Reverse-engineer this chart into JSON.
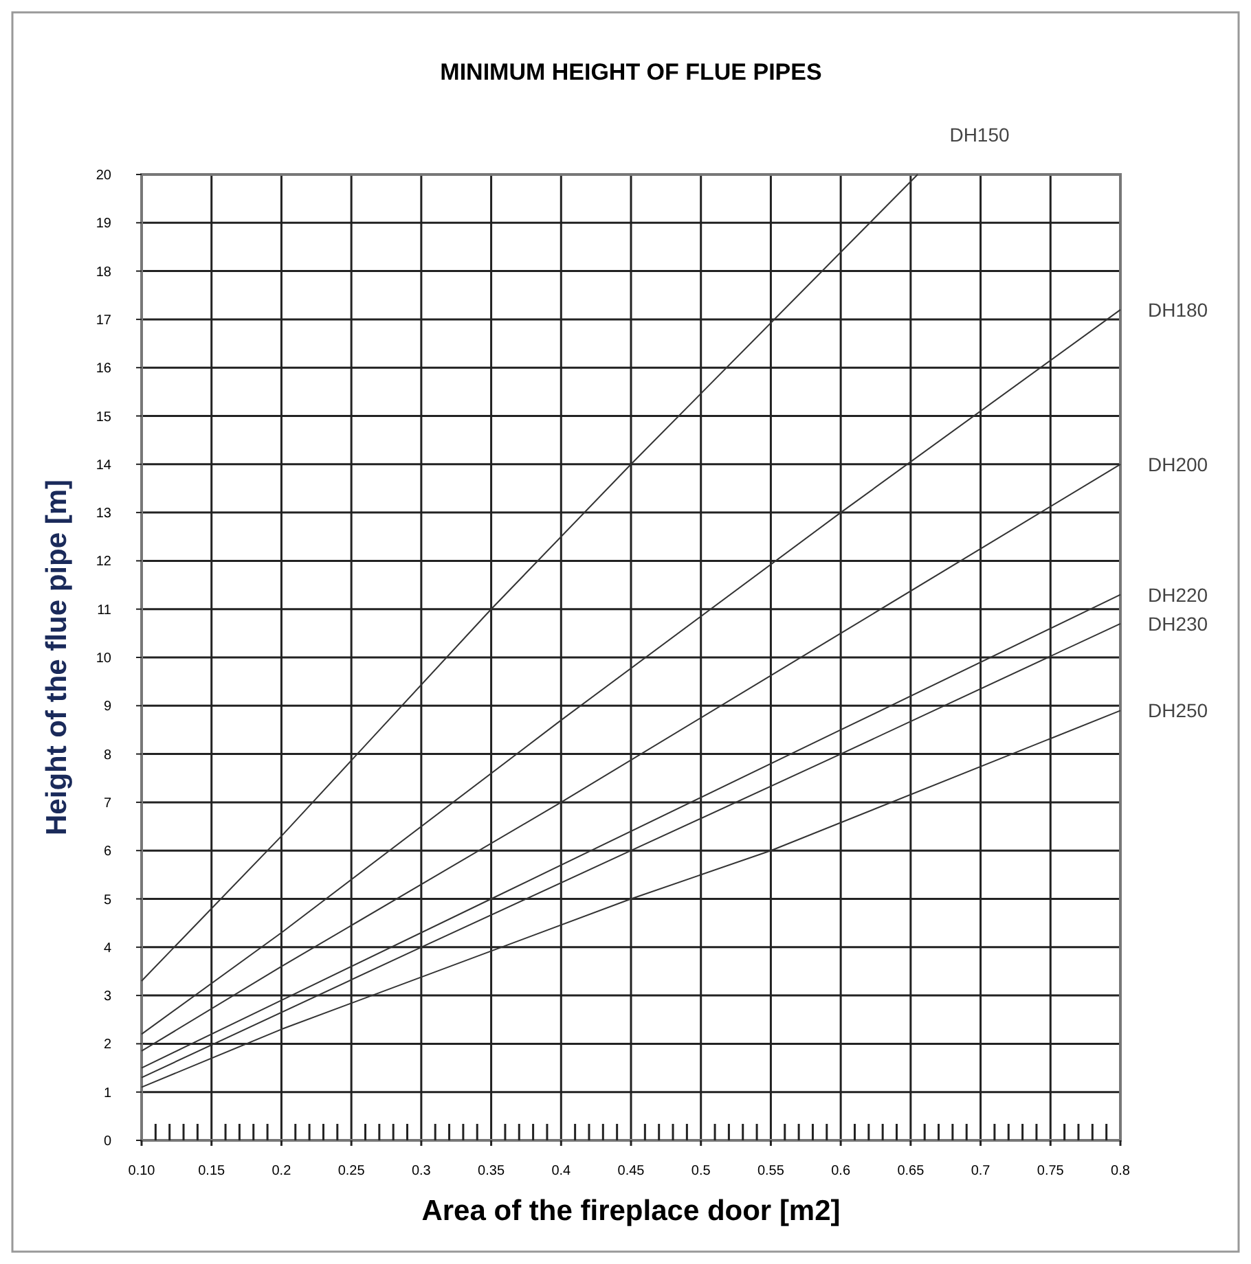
{
  "chart_data": {
    "type": "line",
    "title": "MINIMUM HEIGHT OF FLUE PIPES",
    "xlabel": "Area of the fireplace door [m2]",
    "ylabel": "Height of the flue pipe [m]",
    "xlim": [
      0.1,
      0.8
    ],
    "ylim": [
      0,
      20
    ],
    "xticks": [
      {
        "value": 0.1,
        "label": "0.10"
      },
      {
        "value": 0.11,
        "label": null
      },
      {
        "value": 0.12,
        "label": null
      },
      {
        "value": 0.13,
        "label": null
      },
      {
        "value": 0.14,
        "label": null
      },
      0.15,
      {
        "value": 0.16,
        "label": null
      },
      {
        "value": 0.17,
        "label": null
      },
      {
        "value": 0.18,
        "label": null
      },
      {
        "value": 0.19,
        "label": null
      },
      0.2,
      {
        "value": 0.21,
        "label": null
      },
      {
        "value": 0.22,
        "label": null
      },
      {
        "value": 0.23,
        "label": null
      },
      {
        "value": 0.24,
        "label": null
      },
      0.25,
      {
        "value": 0.26,
        "label": null
      },
      {
        "value": 0.27,
        "label": null
      },
      {
        "value": 0.28,
        "label": null
      },
      {
        "value": 0.29,
        "label": null
      },
      0.3,
      {
        "value": 0.31,
        "label": null
      },
      {
        "value": 0.32,
        "label": null
      },
      {
        "value": 0.33,
        "label": null
      },
      {
        "value": 0.34,
        "label": null
      },
      0.35,
      {
        "value": 0.36,
        "label": null
      },
      {
        "value": 0.37,
        "label": null
      },
      {
        "value": 0.38,
        "label": null
      },
      {
        "value": 0.39,
        "label": null
      },
      0.4,
      {
        "value": 0.41,
        "label": null
      },
      {
        "value": 0.42,
        "label": null
      },
      {
        "value": 0.43,
        "label": null
      },
      {
        "value": 0.44,
        "label": null
      },
      0.45,
      {
        "value": 0.46,
        "label": null
      },
      {
        "value": 0.47,
        "label": null
      },
      {
        "value": 0.48,
        "label": null
      },
      {
        "value": 0.49,
        "label": null
      },
      0.5,
      {
        "value": 0.51,
        "label": null
      },
      {
        "value": 0.52,
        "label": null
      },
      {
        "value": 0.53,
        "label": null
      },
      {
        "value": 0.54,
        "label": null
      },
      0.55,
      {
        "value": 0.56,
        "label": null
      },
      {
        "value": 0.57,
        "label": null
      },
      {
        "value": 0.58,
        "label": null
      },
      {
        "value": 0.59,
        "label": null
      },
      0.6,
      {
        "value": 0.61,
        "label": null
      },
      {
        "value": 0.62,
        "label": null
      },
      {
        "value": 0.63,
        "label": null
      },
      {
        "value": 0.64,
        "label": null
      },
      0.65,
      {
        "value": 0.66,
        "label": null
      },
      {
        "value": 0.67,
        "label": null
      },
      {
        "value": 0.68,
        "label": null
      },
      {
        "value": 0.69,
        "label": null
      },
      0.7,
      {
        "value": 0.71,
        "label": null
      },
      {
        "value": 0.72,
        "label": null
      },
      {
        "value": 0.73,
        "label": null
      },
      {
        "value": 0.74,
        "label": null
      },
      0.75,
      {
        "value": 0.76,
        "label": null
      },
      {
        "value": 0.77,
        "label": null
      },
      {
        "value": 0.78,
        "label": null
      },
      {
        "value": 0.79,
        "label": null
      },
      0.8
    ],
    "yticks": [
      0,
      1,
      2,
      3,
      4,
      5,
      6,
      7,
      8,
      9,
      10,
      11,
      12,
      13,
      14,
      15,
      16,
      17,
      18,
      19,
      20
    ],
    "grid": true,
    "marker": "none",
    "line_style": "solid",
    "series": [
      {
        "name": "DH150",
        "color": "#333333",
        "x": [
          0.1,
          0.2,
          0.35,
          0.45,
          0.655
        ],
        "values": [
          3.3,
          6.3,
          11,
          14,
          20
        ]
      },
      {
        "name": "DH180",
        "color": "#333333",
        "x": [
          0.1,
          0.2,
          0.4,
          0.6,
          0.8
        ],
        "values": [
          2.2,
          4.3,
          8.7,
          13,
          17.2
        ]
      },
      {
        "name": "DH200",
        "color": "#333333",
        "x": [
          0.1,
          0.2,
          0.4,
          0.6,
          0.8
        ],
        "values": [
          1.85,
          3.6,
          7,
          10.5,
          14
        ]
      },
      {
        "name": "DH220",
        "color": "#333333",
        "x": [
          0.1,
          0.2,
          0.35,
          0.6,
          0.8
        ],
        "values": [
          1.5,
          2.9,
          5,
          8.5,
          11.3
        ]
      },
      {
        "name": "DH230",
        "color": "#333333",
        "x": [
          0.1,
          0.3,
          0.45,
          0.6,
          0.8
        ],
        "values": [
          1.3,
          4,
          6,
          8,
          10.7
        ]
      },
      {
        "name": "DH250",
        "color": "#333333",
        "x": [
          0.1,
          0.2,
          0.45,
          0.55,
          0.8
        ],
        "values": [
          1.1,
          2.3,
          5,
          6,
          8.9
        ]
      }
    ]
  }
}
